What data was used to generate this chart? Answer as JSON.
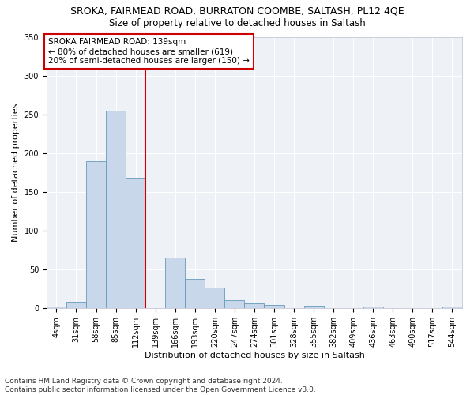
{
  "title": "SROKA, FAIRMEAD ROAD, BURRATON COOMBE, SALTASH, PL12 4QE",
  "subtitle": "Size of property relative to detached houses in Saltash",
  "xlabel": "Distribution of detached houses by size in Saltash",
  "ylabel": "Number of detached properties",
  "categories": [
    "4sqm",
    "31sqm",
    "58sqm",
    "85sqm",
    "112sqm",
    "139sqm",
    "166sqm",
    "193sqm",
    "220sqm",
    "247sqm",
    "274sqm",
    "301sqm",
    "328sqm",
    "355sqm",
    "382sqm",
    "409sqm",
    "436sqm",
    "463sqm",
    "490sqm",
    "517sqm",
    "544sqm"
  ],
  "values": [
    2,
    9,
    190,
    255,
    168,
    0,
    65,
    38,
    27,
    11,
    6,
    4,
    0,
    3,
    0,
    0,
    2,
    0,
    0,
    0,
    2
  ],
  "bar_color": "#c8d8ea",
  "bar_edge_color": "#6699bb",
  "vline_color": "#cc0000",
  "ylim": [
    0,
    350
  ],
  "yticks": [
    0,
    50,
    100,
    150,
    200,
    250,
    300,
    350
  ],
  "annotation_title": "SROKA FAIRMEAD ROAD: 139sqm",
  "annotation_line1": "← 80% of detached houses are smaller (619)",
  "annotation_line2": "20% of semi-detached houses are larger (150) →",
  "annotation_box_color": "#ffffff",
  "annotation_box_edge_color": "#cc0000",
  "footer1": "Contains HM Land Registry data © Crown copyright and database right 2024.",
  "footer2": "Contains public sector information licensed under the Open Government Licence v3.0.",
  "background_color": "#eef2f7",
  "grid_color": "#ffffff",
  "title_fontsize": 9,
  "subtitle_fontsize": 8.5,
  "axis_label_fontsize": 8,
  "tick_fontsize": 7,
  "annotation_fontsize": 7.5,
  "footer_fontsize": 6.5
}
